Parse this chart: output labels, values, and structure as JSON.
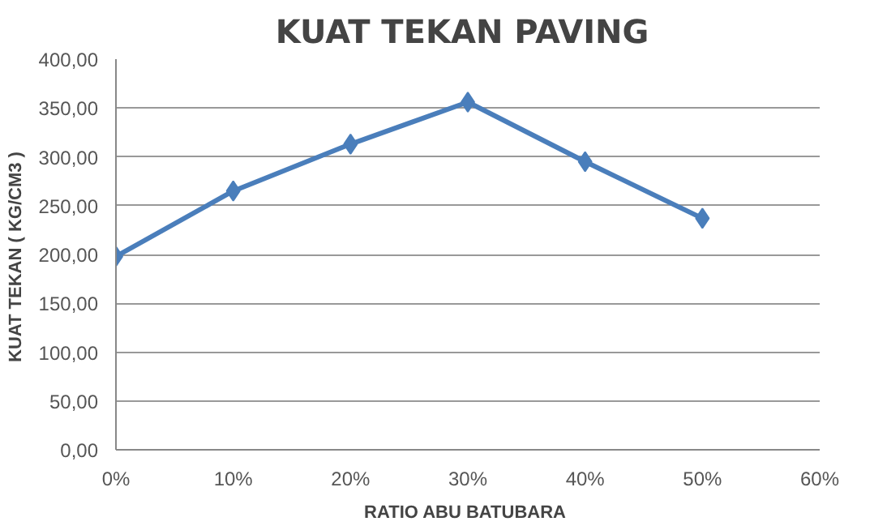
{
  "chart_data": {
    "type": "line",
    "title": "KUAT  TEKAN PAVING",
    "xlabel": "RATIO ABU  BATUBARA",
    "ylabel": "KUAT TEKAN  ( KG/CM3 )",
    "x": [
      0,
      0.1,
      0.2,
      0.3,
      0.4,
      0.5
    ],
    "series": [
      {
        "color": "#4a7ebb",
        "values": [
          198,
          265,
          313,
          356,
          295,
          237
        ]
      }
    ],
    "xlim": [
      0,
      0.6
    ],
    "xticks": [
      {
        "value": 0,
        "label": "0%"
      },
      {
        "value": 0.1,
        "label": "10%"
      },
      {
        "value": 0.2,
        "label": "20%"
      },
      {
        "value": 0.3,
        "label": "30%"
      },
      {
        "value": 0.4,
        "label": "40%"
      },
      {
        "value": 0.5,
        "label": "50%"
      },
      {
        "value": 0.6,
        "label": "60%"
      }
    ],
    "ylim": [
      0,
      400
    ],
    "yticks": [
      {
        "value": 0,
        "label": "0,00"
      },
      {
        "value": 50,
        "label": "50,00"
      },
      {
        "value": 100,
        "label": "100,00"
      },
      {
        "value": 150,
        "label": "150,00"
      },
      {
        "value": 200,
        "label": "200,00"
      },
      {
        "value": 250,
        "label": "250,00"
      },
      {
        "value": 300,
        "label": "300,00"
      },
      {
        "value": 350,
        "label": "350,00"
      },
      {
        "value": 400,
        "label": "400,00"
      }
    ],
    "grid": "y",
    "marker": "diamond",
    "line_style": "solid"
  }
}
